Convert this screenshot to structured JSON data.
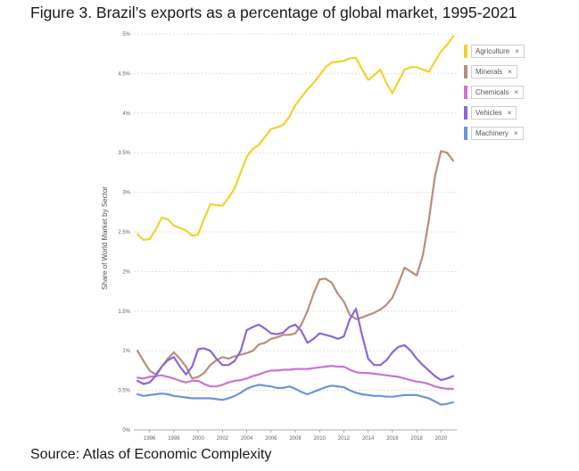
{
  "figure": {
    "title": "Figure 3. Brazil’s exports as a percentage of global market, 1995-2021",
    "source": "Source: Atlas of Economic Complexity"
  },
  "legend_close_glyph": "×",
  "chart_data": {
    "type": "line",
    "title": "",
    "xlabel": "",
    "ylabel": "Share of World Market by Sector",
    "xlim": [
      1994.7,
      2021.3
    ],
    "ylim": [
      0,
      5
    ],
    "x_ticks": [
      1996,
      1998,
      2000,
      2002,
      2004,
      2006,
      2008,
      2010,
      2012,
      2014,
      2016,
      2018,
      2020
    ],
    "y_ticks": [
      0,
      0.5,
      1,
      1.5,
      2,
      2.5,
      3,
      3.5,
      4,
      4.5,
      5
    ],
    "y_tick_labels": [
      "0%",
      "0.5%",
      "1%",
      "1.5%",
      "2%",
      "2.5%",
      "3%",
      "3.5%",
      "4%",
      "4.5%",
      "5%"
    ],
    "grid": "horizontal dashed",
    "legend_position": "right",
    "series": [
      {
        "name": "Agriculture",
        "color": "#F3D32A",
        "points": [
          [
            1995,
            2.47
          ],
          [
            1995.5,
            2.4
          ],
          [
            1996,
            2.41
          ],
          [
            1996.5,
            2.53
          ],
          [
            1997,
            2.68
          ],
          [
            1997.5,
            2.66
          ],
          [
            1998,
            2.58
          ],
          [
            1998.5,
            2.55
          ],
          [
            1999,
            2.52
          ],
          [
            1999.5,
            2.45
          ],
          [
            2000,
            2.47
          ],
          [
            2000.5,
            2.67
          ],
          [
            2001,
            2.85
          ],
          [
            2001.5,
            2.84
          ],
          [
            2002,
            2.83
          ],
          [
            2002.5,
            2.93
          ],
          [
            2003,
            3.05
          ],
          [
            2003.5,
            3.25
          ],
          [
            2004,
            3.45
          ],
          [
            2004.5,
            3.55
          ],
          [
            2005,
            3.6
          ],
          [
            2005.5,
            3.7
          ],
          [
            2006,
            3.8
          ],
          [
            2006.5,
            3.82
          ],
          [
            2007,
            3.85
          ],
          [
            2007.5,
            3.95
          ],
          [
            2008,
            4.1
          ],
          [
            2008.5,
            4.2
          ],
          [
            2009,
            4.3
          ],
          [
            2009.5,
            4.38
          ],
          [
            2010,
            4.48
          ],
          [
            2010.5,
            4.58
          ],
          [
            2011,
            4.64
          ],
          [
            2011.5,
            4.65
          ],
          [
            2012,
            4.66
          ],
          [
            2012.5,
            4.69
          ],
          [
            2013,
            4.7
          ],
          [
            2013.5,
            4.55
          ],
          [
            2014,
            4.42
          ],
          [
            2014.5,
            4.48
          ],
          [
            2015,
            4.55
          ],
          [
            2015.5,
            4.38
          ],
          [
            2016,
            4.25
          ],
          [
            2016.5,
            4.4
          ],
          [
            2017,
            4.55
          ],
          [
            2017.5,
            4.58
          ],
          [
            2018,
            4.58
          ],
          [
            2018.5,
            4.55
          ],
          [
            2019,
            4.52
          ],
          [
            2019.5,
            4.65
          ],
          [
            2020,
            4.78
          ],
          [
            2020.5,
            4.86
          ],
          [
            2021,
            4.97
          ]
        ]
      },
      {
        "name": "Minerals",
        "color": "#B88F7C",
        "points": [
          [
            1995,
            1.0
          ],
          [
            1995.5,
            0.87
          ],
          [
            1996,
            0.75
          ],
          [
            1996.5,
            0.7
          ],
          [
            1997,
            0.8
          ],
          [
            1997.5,
            0.9
          ],
          [
            1998,
            0.98
          ],
          [
            1998.5,
            0.9
          ],
          [
            1999,
            0.8
          ],
          [
            1999.5,
            0.65
          ],
          [
            2000,
            0.67
          ],
          [
            2000.5,
            0.72
          ],
          [
            2001,
            0.82
          ],
          [
            2001.5,
            0.88
          ],
          [
            2002,
            0.92
          ],
          [
            2002.5,
            0.9
          ],
          [
            2003,
            0.93
          ],
          [
            2003.5,
            0.95
          ],
          [
            2004,
            0.97
          ],
          [
            2004.5,
            1.0
          ],
          [
            2005,
            1.08
          ],
          [
            2005.5,
            1.1
          ],
          [
            2006,
            1.15
          ],
          [
            2006.5,
            1.17
          ],
          [
            2007,
            1.2
          ],
          [
            2007.5,
            1.2
          ],
          [
            2008,
            1.22
          ],
          [
            2008.5,
            1.33
          ],
          [
            2009,
            1.5
          ],
          [
            2009.5,
            1.72
          ],
          [
            2010,
            1.9
          ],
          [
            2010.5,
            1.91
          ],
          [
            2011,
            1.86
          ],
          [
            2011.5,
            1.72
          ],
          [
            2012,
            1.62
          ],
          [
            2012.5,
            1.45
          ],
          [
            2013,
            1.4
          ],
          [
            2013.5,
            1.42
          ],
          [
            2014,
            1.45
          ],
          [
            2014.5,
            1.48
          ],
          [
            2015,
            1.52
          ],
          [
            2015.5,
            1.58
          ],
          [
            2016,
            1.67
          ],
          [
            2016.5,
            1.85
          ],
          [
            2017,
            2.05
          ],
          [
            2017.5,
            2.0
          ],
          [
            2018,
            1.95
          ],
          [
            2018.5,
            2.2
          ],
          [
            2019,
            2.65
          ],
          [
            2019.5,
            3.2
          ],
          [
            2020,
            3.52
          ],
          [
            2020.5,
            3.5
          ],
          [
            2021,
            3.4
          ]
        ]
      },
      {
        "name": "Chemicals",
        "color": "#C876D2",
        "points": [
          [
            1995,
            0.66
          ],
          [
            1995.5,
            0.65
          ],
          [
            1996,
            0.67
          ],
          [
            1996.5,
            0.68
          ],
          [
            1997,
            0.69
          ],
          [
            1997.5,
            0.67
          ],
          [
            1998,
            0.65
          ],
          [
            1998.5,
            0.62
          ],
          [
            1999,
            0.6
          ],
          [
            1999.5,
            0.62
          ],
          [
            2000,
            0.62
          ],
          [
            2000.5,
            0.58
          ],
          [
            2001,
            0.55
          ],
          [
            2001.5,
            0.55
          ],
          [
            2002,
            0.57
          ],
          [
            2002.5,
            0.6
          ],
          [
            2003,
            0.62
          ],
          [
            2003.5,
            0.63
          ],
          [
            2004,
            0.65
          ],
          [
            2004.5,
            0.68
          ],
          [
            2005,
            0.7
          ],
          [
            2005.5,
            0.73
          ],
          [
            2006,
            0.75
          ],
          [
            2006.5,
            0.75
          ],
          [
            2007,
            0.76
          ],
          [
            2007.5,
            0.76
          ],
          [
            2008,
            0.77
          ],
          [
            2008.5,
            0.77
          ],
          [
            2009,
            0.77
          ],
          [
            2009.5,
            0.78
          ],
          [
            2010,
            0.79
          ],
          [
            2010.5,
            0.8
          ],
          [
            2011,
            0.81
          ],
          [
            2011.5,
            0.8
          ],
          [
            2012,
            0.8
          ],
          [
            2012.5,
            0.76
          ],
          [
            2013,
            0.73
          ],
          [
            2013.5,
            0.72
          ],
          [
            2014,
            0.72
          ],
          [
            2014.5,
            0.71
          ],
          [
            2015,
            0.7
          ],
          [
            2015.5,
            0.69
          ],
          [
            2016,
            0.68
          ],
          [
            2016.5,
            0.67
          ],
          [
            2017,
            0.65
          ],
          [
            2017.5,
            0.63
          ],
          [
            2018,
            0.61
          ],
          [
            2018.5,
            0.6
          ],
          [
            2019,
            0.58
          ],
          [
            2019.5,
            0.55
          ],
          [
            2020,
            0.53
          ],
          [
            2020.5,
            0.52
          ],
          [
            2021,
            0.52
          ]
        ]
      },
      {
        "name": "Vehicles",
        "color": "#8B67DA",
        "points": [
          [
            1995,
            0.62
          ],
          [
            1995.5,
            0.58
          ],
          [
            1996,
            0.6
          ],
          [
            1996.5,
            0.68
          ],
          [
            1997,
            0.8
          ],
          [
            1997.5,
            0.88
          ],
          [
            1998,
            0.92
          ],
          [
            1998.5,
            0.8
          ],
          [
            1999,
            0.7
          ],
          [
            1999.5,
            0.8
          ],
          [
            2000,
            1.02
          ],
          [
            2000.5,
            1.03
          ],
          [
            2001,
            1.0
          ],
          [
            2001.5,
            0.9
          ],
          [
            2002,
            0.82
          ],
          [
            2002.5,
            0.82
          ],
          [
            2003,
            0.87
          ],
          [
            2003.5,
            1.0
          ],
          [
            2004,
            1.26
          ],
          [
            2004.5,
            1.3
          ],
          [
            2005,
            1.33
          ],
          [
            2005.5,
            1.28
          ],
          [
            2006,
            1.22
          ],
          [
            2006.5,
            1.21
          ],
          [
            2007,
            1.23
          ],
          [
            2007.5,
            1.3
          ],
          [
            2008,
            1.33
          ],
          [
            2008.5,
            1.25
          ],
          [
            2009,
            1.1
          ],
          [
            2009.5,
            1.15
          ],
          [
            2010,
            1.22
          ],
          [
            2010.5,
            1.2
          ],
          [
            2011,
            1.18
          ],
          [
            2011.5,
            1.15
          ],
          [
            2012,
            1.18
          ],
          [
            2012.5,
            1.4
          ],
          [
            2013,
            1.53
          ],
          [
            2013.5,
            1.2
          ],
          [
            2014,
            0.9
          ],
          [
            2014.5,
            0.82
          ],
          [
            2015,
            0.82
          ],
          [
            2015.5,
            0.88
          ],
          [
            2016,
            0.98
          ],
          [
            2016.5,
            1.05
          ],
          [
            2017,
            1.07
          ],
          [
            2017.5,
            1.0
          ],
          [
            2018,
            0.9
          ],
          [
            2018.5,
            0.82
          ],
          [
            2019,
            0.75
          ],
          [
            2019.5,
            0.68
          ],
          [
            2020,
            0.63
          ],
          [
            2020.5,
            0.65
          ],
          [
            2021,
            0.68
          ]
        ]
      },
      {
        "name": "Machinery",
        "color": "#6C95D8",
        "points": [
          [
            1995,
            0.45
          ],
          [
            1995.5,
            0.43
          ],
          [
            1996,
            0.44
          ],
          [
            1996.5,
            0.45
          ],
          [
            1997,
            0.46
          ],
          [
            1997.5,
            0.45
          ],
          [
            1998,
            0.43
          ],
          [
            1998.5,
            0.42
          ],
          [
            1999,
            0.41
          ],
          [
            1999.5,
            0.4
          ],
          [
            2000,
            0.4
          ],
          [
            2000.5,
            0.4
          ],
          [
            2001,
            0.4
          ],
          [
            2001.5,
            0.39
          ],
          [
            2002,
            0.38
          ],
          [
            2002.5,
            0.4
          ],
          [
            2003,
            0.43
          ],
          [
            2003.5,
            0.47
          ],
          [
            2004,
            0.52
          ],
          [
            2004.5,
            0.55
          ],
          [
            2005,
            0.57
          ],
          [
            2005.5,
            0.56
          ],
          [
            2006,
            0.55
          ],
          [
            2006.5,
            0.53
          ],
          [
            2007,
            0.53
          ],
          [
            2007.5,
            0.55
          ],
          [
            2008,
            0.52
          ],
          [
            2008.5,
            0.48
          ],
          [
            2009,
            0.45
          ],
          [
            2009.5,
            0.48
          ],
          [
            2010,
            0.51
          ],
          [
            2010.5,
            0.54
          ],
          [
            2011,
            0.56
          ],
          [
            2011.5,
            0.55
          ],
          [
            2012,
            0.54
          ],
          [
            2012.5,
            0.5
          ],
          [
            2013,
            0.47
          ],
          [
            2013.5,
            0.45
          ],
          [
            2014,
            0.44
          ],
          [
            2014.5,
            0.43
          ],
          [
            2015,
            0.43
          ],
          [
            2015.5,
            0.42
          ],
          [
            2016,
            0.42
          ],
          [
            2016.5,
            0.43
          ],
          [
            2017,
            0.44
          ],
          [
            2017.5,
            0.44
          ],
          [
            2018,
            0.44
          ],
          [
            2018.5,
            0.42
          ],
          [
            2019,
            0.4
          ],
          [
            2019.5,
            0.36
          ],
          [
            2020,
            0.32
          ],
          [
            2020.5,
            0.33
          ],
          [
            2021,
            0.35
          ]
        ]
      }
    ]
  }
}
